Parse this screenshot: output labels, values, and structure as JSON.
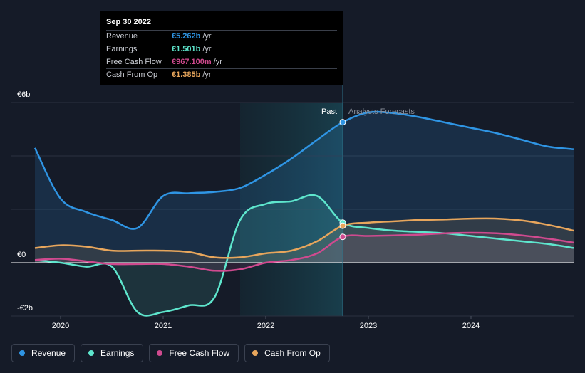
{
  "chart_data": {
    "type": "line",
    "y_unit": "€ billions",
    "ylim": [
      -2,
      6
    ],
    "xlim": [
      2019.5,
      2025.0
    ],
    "y_ticks": [
      {
        "value": 6,
        "label": "€6b"
      },
      {
        "value": 0,
        "label": "€0"
      },
      {
        "value": -2,
        "label": "-€2b"
      }
    ],
    "x_ticks": [
      {
        "value": 2020,
        "label": "2020"
      },
      {
        "value": 2021,
        "label": "2021"
      },
      {
        "value": 2022,
        "label": "2022"
      },
      {
        "value": 2023,
        "label": "2023"
      },
      {
        "value": 2024,
        "label": "2024"
      }
    ],
    "past_label": "Past",
    "forecast_label": "Analysts Forecasts",
    "divider_x": 2022.75,
    "highlight_start_x": 2021.75,
    "series": [
      {
        "name": "Revenue",
        "color": "#2f95e4",
        "points": [
          [
            2019.75,
            4.3
          ],
          [
            2020.0,
            2.4
          ],
          [
            2020.25,
            1.9
          ],
          [
            2020.5,
            1.6
          ],
          [
            2020.75,
            1.3
          ],
          [
            2021.0,
            2.5
          ],
          [
            2021.25,
            2.6
          ],
          [
            2021.5,
            2.65
          ],
          [
            2021.75,
            2.8
          ],
          [
            2022.0,
            3.3
          ],
          [
            2022.25,
            3.9
          ],
          [
            2022.5,
            4.6
          ],
          [
            2022.75,
            5.262
          ],
          [
            2023.0,
            5.63
          ],
          [
            2023.25,
            5.6
          ],
          [
            2023.5,
            5.45
          ],
          [
            2023.75,
            5.25
          ],
          [
            2024.0,
            5.05
          ],
          [
            2024.25,
            4.85
          ],
          [
            2024.5,
            4.6
          ],
          [
            2024.75,
            4.35
          ],
          [
            2025.0,
            4.25
          ]
        ]
      },
      {
        "name": "Earnings",
        "color": "#5ee6cd",
        "points": [
          [
            2019.75,
            0.1
          ],
          [
            2020.0,
            0.0
          ],
          [
            2020.25,
            -0.15
          ],
          [
            2020.5,
            -0.15
          ],
          [
            2020.75,
            -1.85
          ],
          [
            2021.0,
            -1.85
          ],
          [
            2021.25,
            -1.6
          ],
          [
            2021.5,
            -1.3
          ],
          [
            2021.75,
            1.6
          ],
          [
            2022.0,
            2.2
          ],
          [
            2022.25,
            2.3
          ],
          [
            2022.5,
            2.5
          ],
          [
            2022.75,
            1.501
          ],
          [
            2023.0,
            1.3
          ],
          [
            2023.25,
            1.2
          ],
          [
            2023.5,
            1.15
          ],
          [
            2023.75,
            1.1
          ],
          [
            2024.0,
            1.0
          ],
          [
            2024.25,
            0.9
          ],
          [
            2024.5,
            0.8
          ],
          [
            2024.75,
            0.7
          ],
          [
            2025.0,
            0.55
          ]
        ]
      },
      {
        "name": "Free Cash Flow",
        "color": "#d04a8f",
        "points": [
          [
            2019.75,
            0.1
          ],
          [
            2020.0,
            0.15
          ],
          [
            2020.25,
            0.05
          ],
          [
            2020.5,
            -0.05
          ],
          [
            2020.75,
            -0.05
          ],
          [
            2021.0,
            -0.05
          ],
          [
            2021.25,
            -0.15
          ],
          [
            2021.5,
            -0.3
          ],
          [
            2021.75,
            -0.25
          ],
          [
            2022.0,
            0.0
          ],
          [
            2022.25,
            0.1
          ],
          [
            2022.5,
            0.35
          ],
          [
            2022.75,
            0.967
          ],
          [
            2023.0,
            1.0
          ],
          [
            2023.25,
            1.02
          ],
          [
            2023.5,
            1.05
          ],
          [
            2023.75,
            1.1
          ],
          [
            2024.0,
            1.12
          ],
          [
            2024.25,
            1.1
          ],
          [
            2024.5,
            1.02
          ],
          [
            2024.75,
            0.9
          ],
          [
            2025.0,
            0.75
          ]
        ]
      },
      {
        "name": "Cash From Op",
        "color": "#e8a65c",
        "points": [
          [
            2019.75,
            0.55
          ],
          [
            2020.0,
            0.65
          ],
          [
            2020.25,
            0.6
          ],
          [
            2020.5,
            0.45
          ],
          [
            2020.75,
            0.45
          ],
          [
            2021.0,
            0.45
          ],
          [
            2021.25,
            0.4
          ],
          [
            2021.5,
            0.2
          ],
          [
            2021.75,
            0.2
          ],
          [
            2022.0,
            0.35
          ],
          [
            2022.25,
            0.45
          ],
          [
            2022.5,
            0.8
          ],
          [
            2022.75,
            1.385
          ],
          [
            2023.0,
            1.5
          ],
          [
            2023.25,
            1.55
          ],
          [
            2023.5,
            1.6
          ],
          [
            2023.75,
            1.62
          ],
          [
            2024.0,
            1.65
          ],
          [
            2024.25,
            1.65
          ],
          [
            2024.5,
            1.58
          ],
          [
            2024.75,
            1.42
          ],
          [
            2025.0,
            1.2
          ]
        ]
      }
    ]
  },
  "tooltip": {
    "date": "Sep 30 2022",
    "rows": [
      {
        "label": "Revenue",
        "value": "€5.262b",
        "unit": "/yr",
        "color": "#2f95e4"
      },
      {
        "label": "Earnings",
        "value": "€1.501b",
        "unit": "/yr",
        "color": "#5ee6cd"
      },
      {
        "label": "Free Cash Flow",
        "value": "€967.100m",
        "unit": "/yr",
        "color": "#d04a8f"
      },
      {
        "label": "Cash From Op",
        "value": "€1.385b",
        "unit": "/yr",
        "color": "#e8a65c"
      }
    ]
  },
  "legend": [
    {
      "label": "Revenue",
      "color": "#2f95e4"
    },
    {
      "label": "Earnings",
      "color": "#5ee6cd"
    },
    {
      "label": "Free Cash Flow",
      "color": "#d04a8f"
    },
    {
      "label": "Cash From Op",
      "color": "#e8a65c"
    }
  ]
}
